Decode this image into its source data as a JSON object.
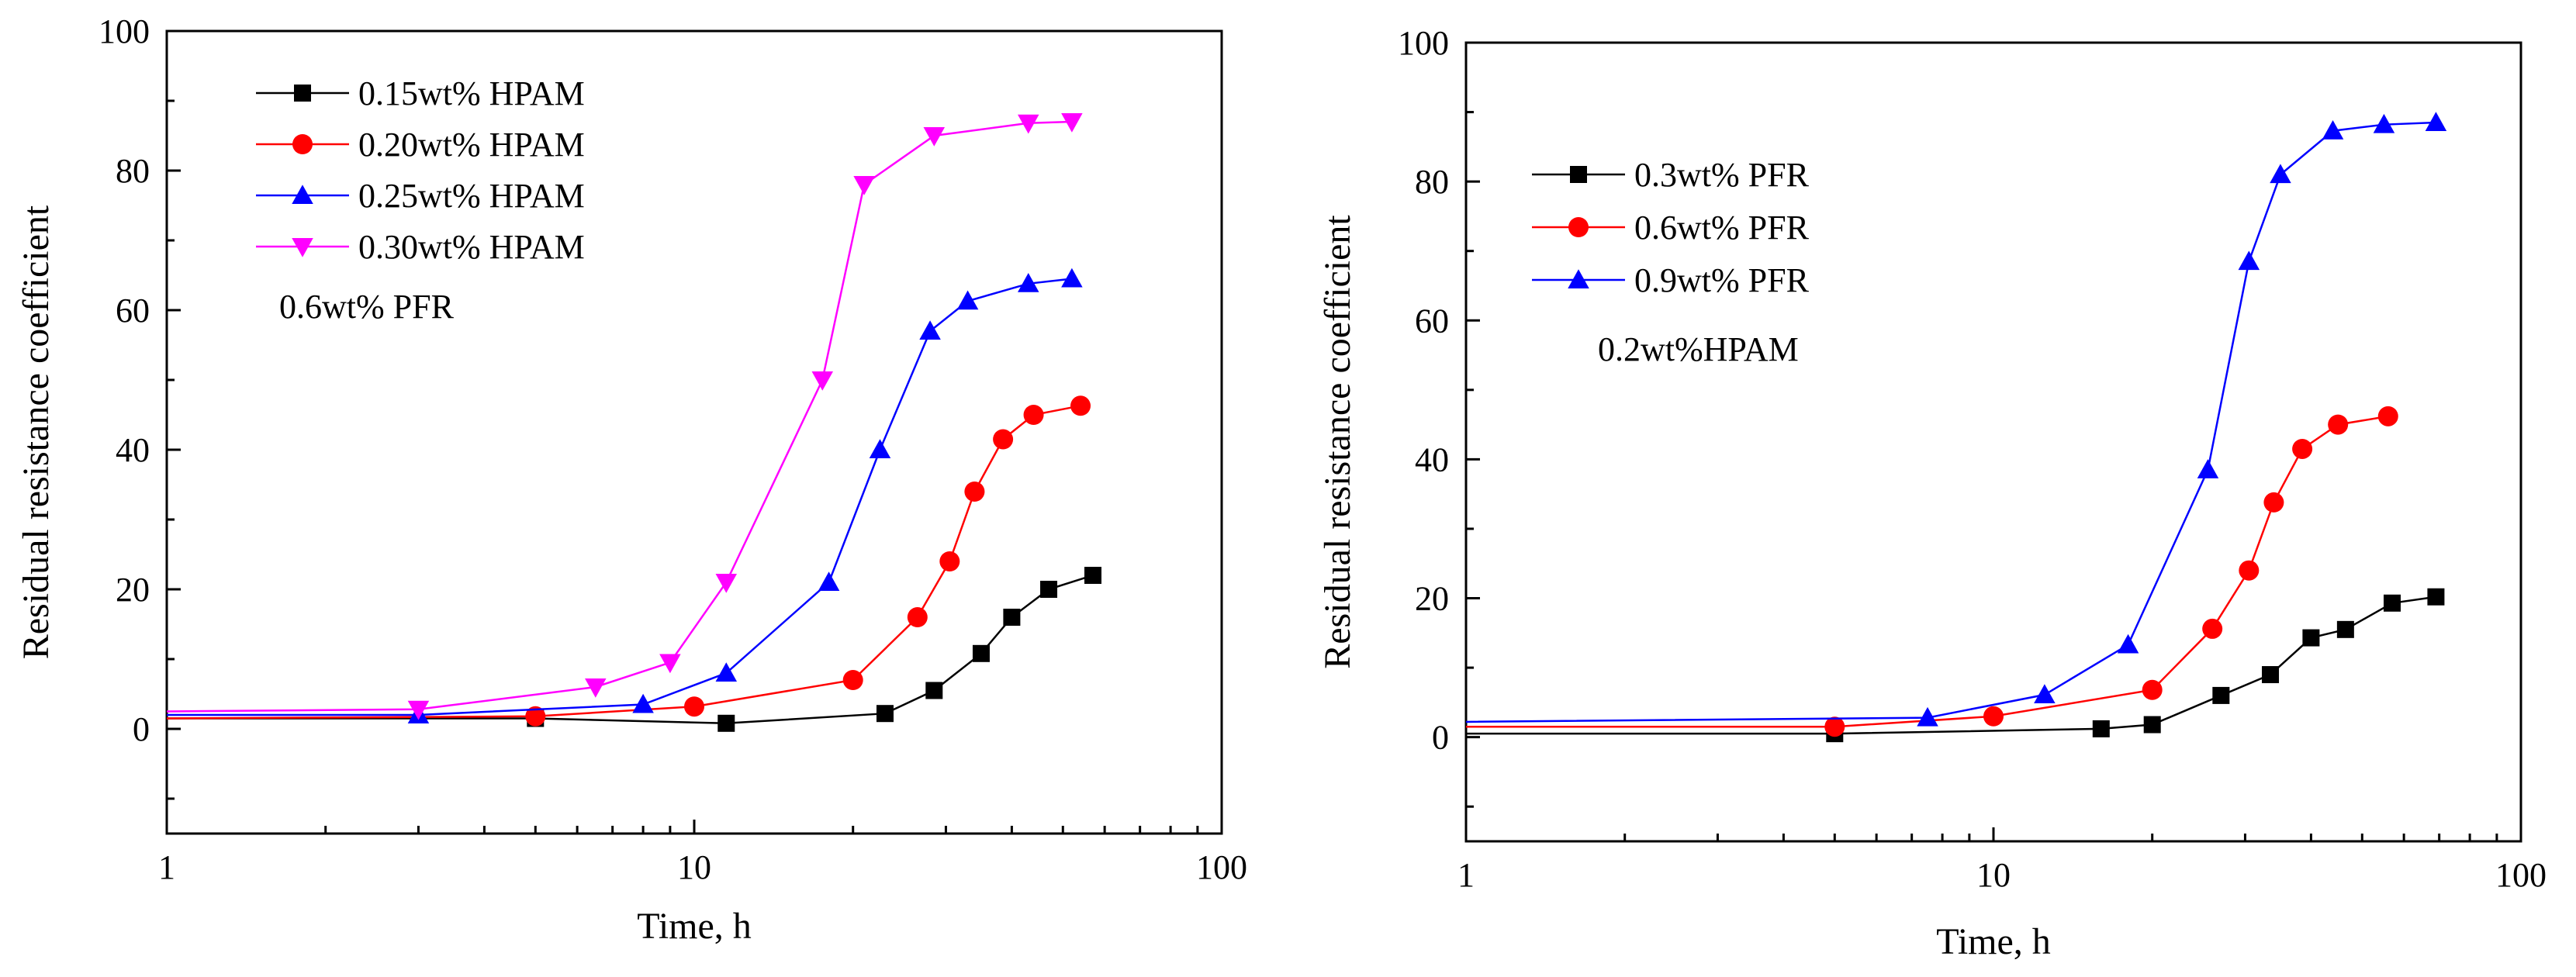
{
  "chart_data": [
    {
      "type": "line",
      "xscale": "log",
      "xlim": [
        1,
        100
      ],
      "ylim": [
        -15,
        100
      ],
      "xticks": [
        1,
        10,
        100
      ],
      "xtick_labels": [
        "1",
        "10",
        "100"
      ],
      "yticks": [
        0,
        20,
        40,
        60,
        80,
        100
      ],
      "ytick_labels": [
        "0",
        "20",
        "40",
        "60",
        "80",
        "100"
      ],
      "xlabel": "Time, h",
      "ylabel": "Residual resistance coefficient",
      "legend_position": "top-left",
      "annotation": "0.6wt% PFR",
      "series": [
        {
          "name": "0.15wt% HPAM",
          "color": "#000000",
          "marker": "square",
          "x": [
            1,
            5,
            11.5,
            23,
            28.5,
            35,
            40,
            47,
            57
          ],
          "y": [
            1.5,
            1.5,
            0.8,
            2.2,
            5.5,
            10.8,
            16,
            20,
            22
          ]
        },
        {
          "name": "0.20wt% HPAM",
          "color": "#ff0000",
          "marker": "circle",
          "x": [
            1,
            5,
            10,
            20,
            26.5,
            30.5,
            34,
            38.5,
            44,
            54
          ],
          "y": [
            1.5,
            1.8,
            3.2,
            7,
            16,
            24,
            34,
            41.5,
            45,
            46.3
          ]
        },
        {
          "name": "0.25wt% HPAM",
          "color": "#0000ff",
          "marker": "triangle-up",
          "x": [
            1,
            3,
            8,
            11.5,
            18,
            22.5,
            28,
            33,
            43,
            52
          ],
          "y": [
            2,
            2,
            3.5,
            8,
            21,
            40,
            57,
            61.3,
            63.8,
            64.5
          ]
        },
        {
          "name": "0.30wt% HPAM",
          "color": "#ff00ff",
          "marker": "triangle-down",
          "x": [
            1,
            3,
            6.5,
            9,
            11.5,
            17.5,
            21,
            28.5,
            43,
            52
          ],
          "y": [
            2.5,
            2.8,
            6,
            9.5,
            21,
            50,
            78,
            85,
            86.8,
            87
          ]
        }
      ]
    },
    {
      "type": "line",
      "xscale": "log",
      "xlim": [
        1,
        100
      ],
      "ylim": [
        -15,
        100
      ],
      "xticks": [
        1,
        10,
        100
      ],
      "xtick_labels": [
        "1",
        "10",
        "100"
      ],
      "yticks": [
        0,
        20,
        40,
        60,
        80,
        100
      ],
      "ytick_labels": [
        "0",
        "20",
        "40",
        "60",
        "80",
        "100"
      ],
      "xlabel": "Time, h",
      "ylabel": "Residual resistance coefficient",
      "legend_position": "top-left",
      "annotation": "0.2wt%HPAM",
      "series": [
        {
          "name": "0.3wt% PFR",
          "color": "#000000",
          "marker": "square",
          "x": [
            1,
            5,
            16,
            20,
            27,
            33.5,
            40,
            46.5,
            57,
            69
          ],
          "y": [
            0.5,
            0.5,
            1.2,
            1.8,
            6,
            9,
            14.3,
            15.5,
            19.3,
            20.2
          ]
        },
        {
          "name": "0.6wt% PFR",
          "color": "#ff0000",
          "marker": "circle",
          "x": [
            1,
            5,
            10,
            20,
            26,
            30.5,
            34,
            38.5,
            45,
            56
          ],
          "y": [
            1.5,
            1.5,
            3,
            6.8,
            15.6,
            24,
            33.8,
            41.5,
            45,
            46.2
          ]
        },
        {
          "name": "0.9wt% PFR",
          "color": "#0000ff",
          "marker": "triangle-up",
          "x": [
            1,
            7.5,
            12.5,
            18,
            25.5,
            30.5,
            35,
            44,
            55,
            69
          ],
          "y": [
            2.2,
            2.8,
            6.1,
            13.3,
            38.5,
            68.5,
            81,
            87.3,
            88.2,
            88.5
          ]
        }
      ]
    }
  ]
}
